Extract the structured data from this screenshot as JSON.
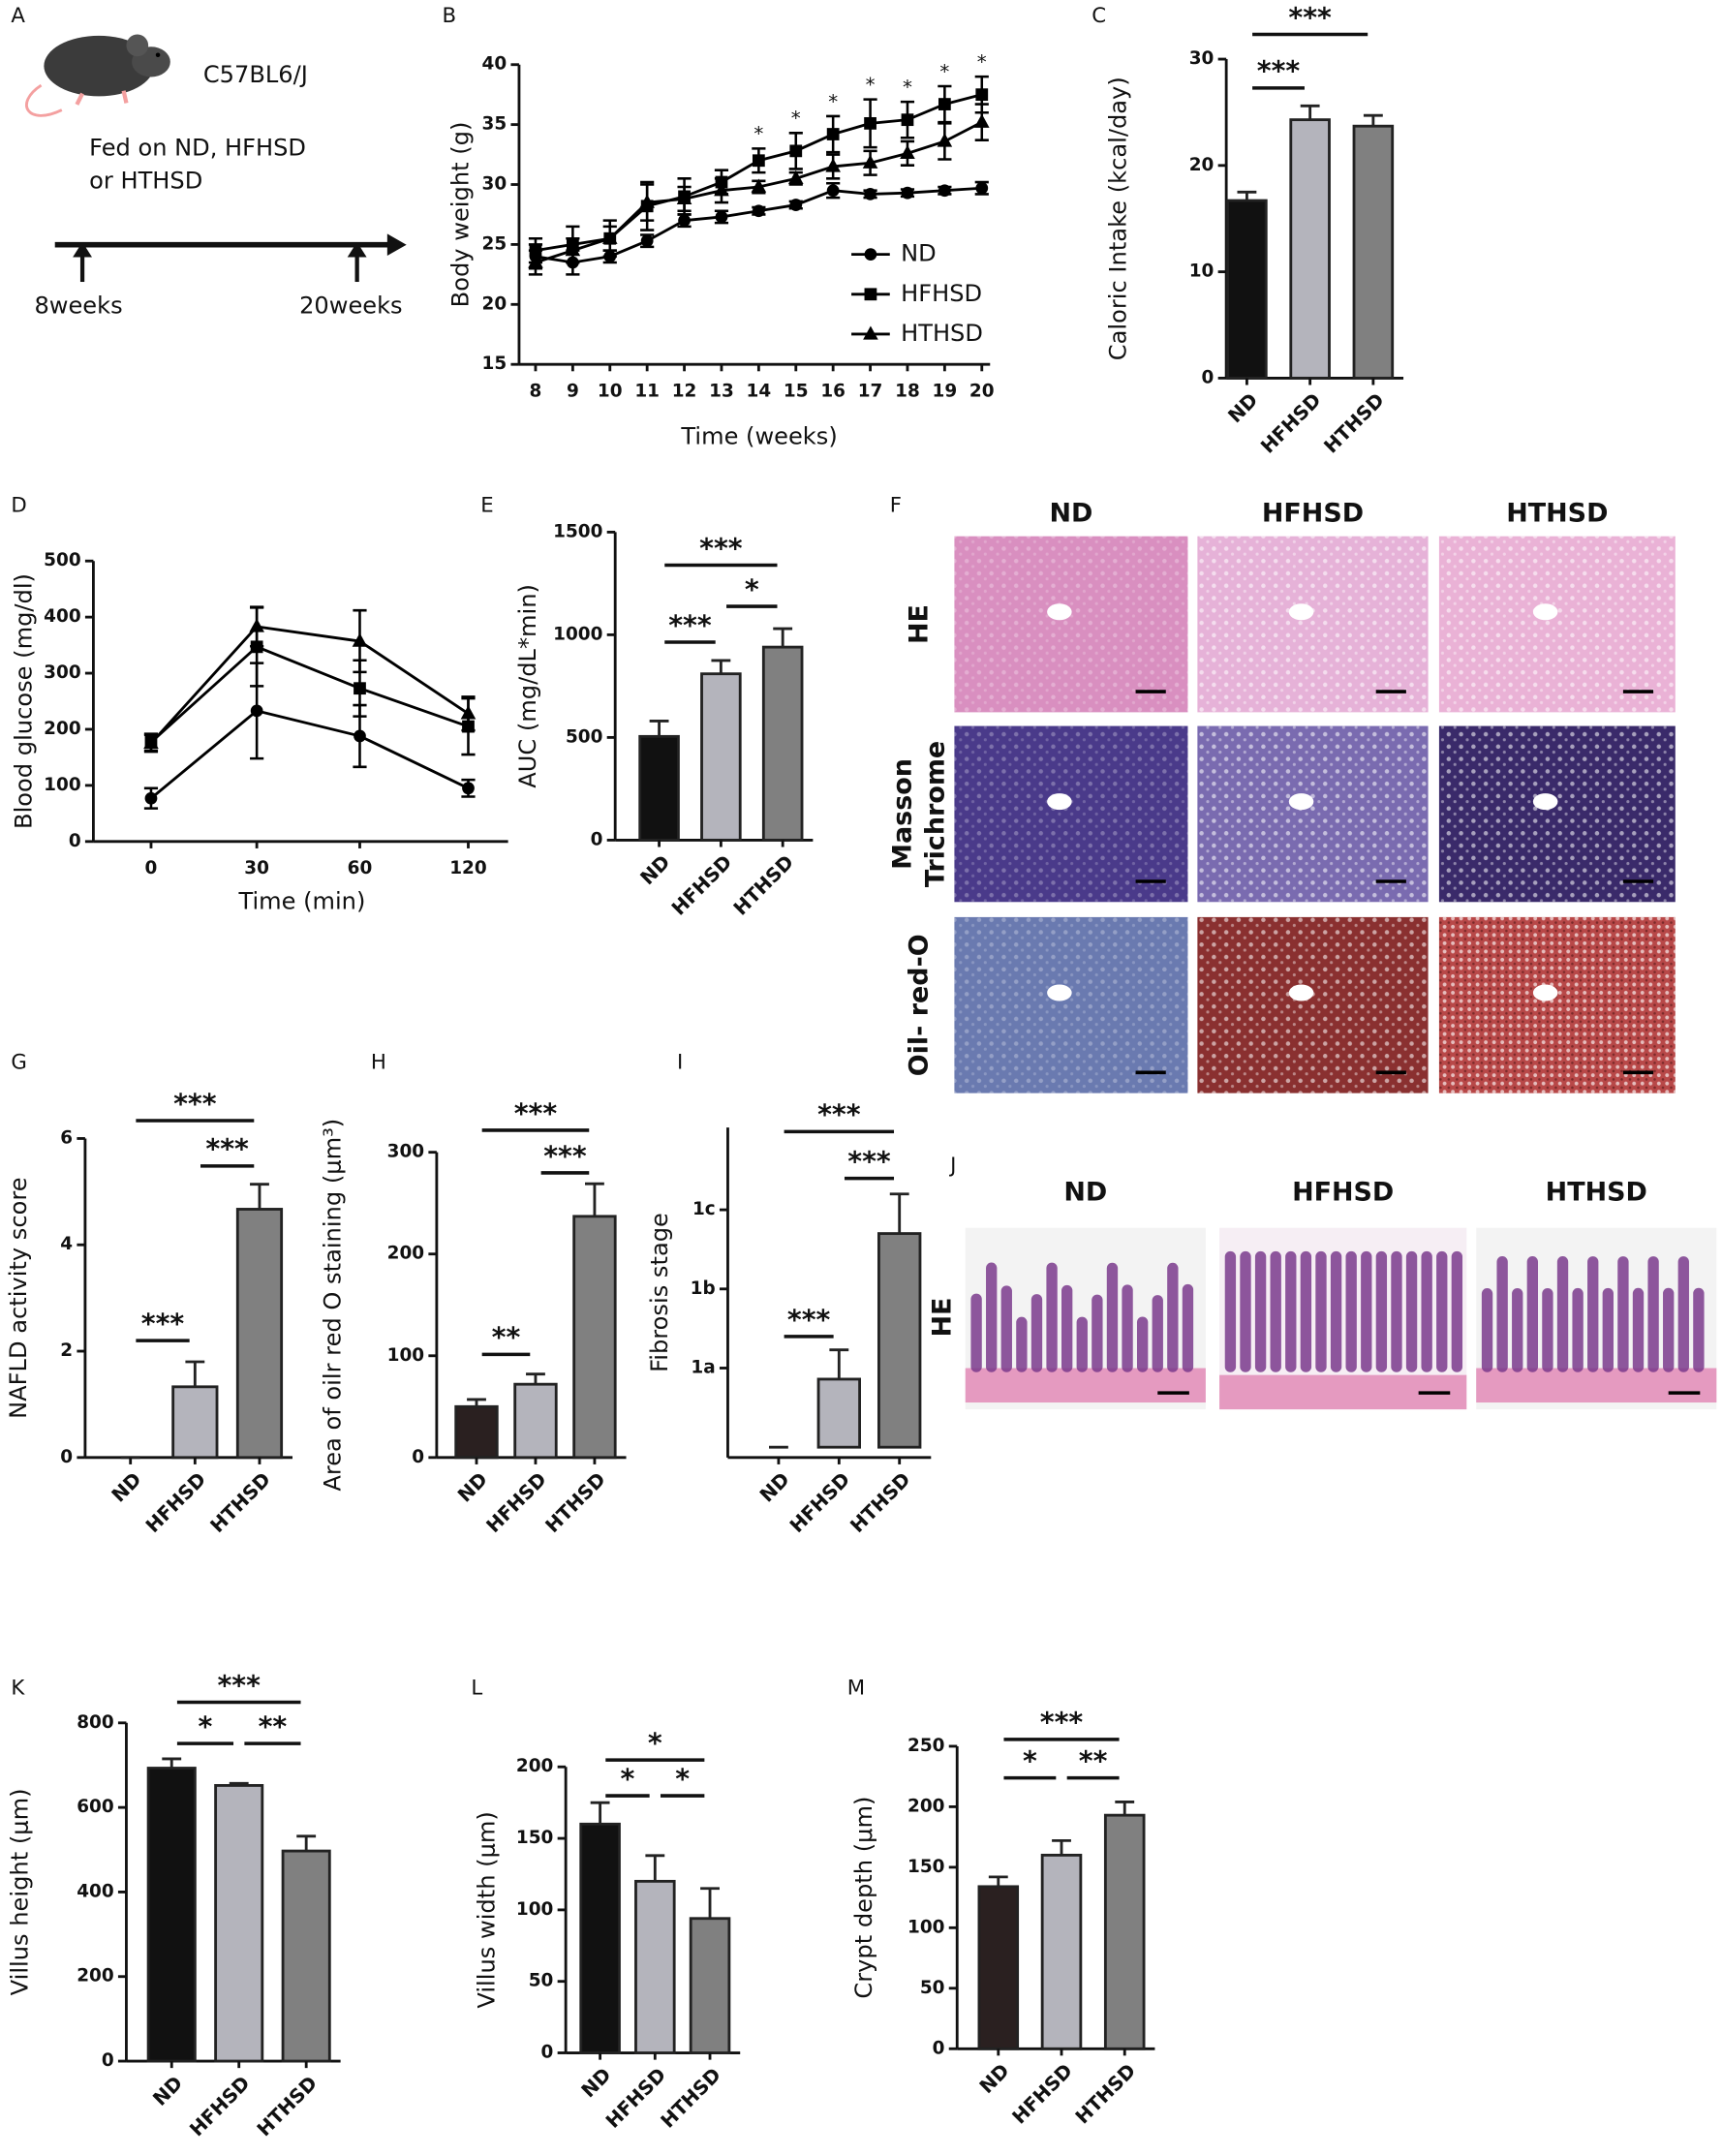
{
  "diagram": {
    "panel": "A",
    "strain": "C57BL6/J",
    "diet_line1": "Fed on ND, HFHSD",
    "diet_line2": "or HTHSD",
    "start": "8weeks",
    "end": "20weeks"
  },
  "chart_data": [
    {
      "type": "line",
      "panel": "B",
      "xlabel": "Time (weeks)",
      "ylabel": "Body weight (g)",
      "x": [
        8,
        9,
        10,
        11,
        12,
        13,
        14,
        15,
        16,
        17,
        18,
        19,
        20
      ],
      "xlim": [
        8,
        20
      ],
      "xticks": [
        8,
        9,
        10,
        11,
        12,
        13,
        14,
        15,
        16,
        17,
        18,
        19,
        20
      ],
      "ylim": [
        15,
        40
      ],
      "yticks": [
        15,
        20,
        25,
        30,
        35,
        40
      ],
      "legend": "right",
      "series": [
        {
          "name": "ND",
          "color": "#000000",
          "marker": "circle",
          "values": [
            24,
            23.5,
            24,
            25.3,
            27,
            27.3,
            27.8,
            28.3,
            29.5,
            29.2,
            29.3,
            29.5,
            29.7
          ],
          "errors": [
            1,
            1,
            0.5,
            0.5,
            0.5,
            0.5,
            0.3,
            0.3,
            0.6,
            0.3,
            0.3,
            0.3,
            0.5
          ]
        },
        {
          "name": "HFHSD",
          "color": "#000000",
          "marker": "square",
          "values": [
            24.5,
            25,
            25.5,
            28.2,
            29,
            30.2,
            32,
            32.8,
            34.2,
            35.1,
            35.4,
            36.7,
            37.5
          ],
          "errors": [
            1,
            1.5,
            1.5,
            2,
            1.5,
            1,
            1,
            1.5,
            1.5,
            2,
            1.5,
            1.5,
            1.5
          ]
        },
        {
          "name": "HTHSD",
          "color": "#000000",
          "marker": "triangle",
          "values": [
            23.5,
            24.5,
            25.5,
            28.5,
            28.8,
            29.5,
            29.8,
            30.5,
            31.5,
            31.8,
            32.6,
            33.6,
            35.2
          ],
          "errors": [
            1,
            1,
            1,
            1.5,
            1,
            1,
            0.5,
            0.5,
            1,
            1,
            1,
            1.5,
            1.5
          ]
        }
      ],
      "annotations": [
        "*",
        "*",
        "*",
        "*",
        "*",
        "*",
        "*"
      ]
    },
    {
      "type": "bar",
      "panel": "C",
      "ylabel": "Caloric Intake (kcal/day)",
      "categories": [
        "ND",
        "HFHSD",
        "HTHSD"
      ],
      "values": [
        16.7,
        24.3,
        23.7
      ],
      "errors": [
        0.8,
        1.3,
        1.0
      ],
      "colors": [
        "#111111",
        "#b4b4bc",
        "#808080"
      ],
      "ylim": [
        0,
        30
      ],
      "yticks": [
        0,
        10,
        20,
        30
      ],
      "annotations": [
        "***",
        "***"
      ]
    },
    {
      "type": "line",
      "panel": "D",
      "xlabel": "Time (min)",
      "ylabel": "Blood glucose (mg/dl)",
      "categories": [
        "0",
        "30",
        "60",
        "120"
      ],
      "ylim": [
        0,
        500
      ],
      "yticks": [
        0,
        100,
        200,
        300,
        400,
        500
      ],
      "series": [
        {
          "color": "#000000",
          "marker": "circle",
          "values": [
            77,
            233,
            188,
            95
          ],
          "errors": [
            18,
            85,
            55,
            15
          ]
        },
        {
          "color": "#000000",
          "marker": "square",
          "values": [
            177,
            347,
            273,
            205
          ],
          "errors": [
            15,
            70,
            50,
            50
          ]
        },
        {
          "color": "#000000",
          "marker": "triangle",
          "values": [
            175,
            383,
            357,
            228
          ],
          "errors": [
            15,
            35,
            55,
            30
          ]
        }
      ]
    },
    {
      "type": "bar",
      "panel": "E",
      "ylabel": "AUC (mg/dL*min)",
      "categories": [
        "ND",
        "HFHSD",
        "HTHSD"
      ],
      "values": [
        505,
        810,
        940
      ],
      "errors": [
        75,
        65,
        90
      ],
      "colors": [
        "#111111",
        "#b4b4bc",
        "#808080"
      ],
      "ylim": [
        0,
        1500
      ],
      "yticks": [
        0,
        500,
        1000,
        1500
      ],
      "annotations": [
        "***",
        "*",
        "***"
      ]
    },
    {
      "type": "bar",
      "panel": "G",
      "ylabel": "NAFLD activity score",
      "categories": [
        "ND",
        "HFHSD",
        "HTHSD"
      ],
      "values": [
        0,
        1.33,
        4.67
      ],
      "errors": [
        0,
        0.47,
        0.47
      ],
      "colors": [
        "#111111",
        "#b4b4bc",
        "#808080"
      ],
      "ylim": [
        0,
        6
      ],
      "yticks": [
        0,
        2,
        4,
        6
      ],
      "annotations": [
        "***",
        "***",
        "***"
      ]
    },
    {
      "type": "bar",
      "panel": "H",
      "ylabel": "Area of oilr red O staining (μm³)",
      "categories": [
        "ND",
        "HFHSD",
        "HTHSD"
      ],
      "values": [
        50,
        72,
        237
      ],
      "errors": [
        7,
        10,
        32
      ],
      "colors": [
        "#2a2020",
        "#b4b4bc",
        "#808080"
      ],
      "ylim": [
        0,
        300
      ],
      "yticks": [
        0,
        100,
        200,
        300
      ],
      "annotations": [
        "**",
        "***",
        "***"
      ]
    },
    {
      "type": "bar",
      "panel": "I",
      "ylabel": "Fibrosis stage",
      "categories": [
        "ND",
        "HFHSD",
        "HTHSD"
      ],
      "values": [
        0,
        0.86,
        2.7
      ],
      "errors": [
        0,
        0.37,
        0.5
      ],
      "colors": [
        "#111111",
        "#b4b4bc",
        "#808080"
      ],
      "ylim": [
        -0.13,
        4.04
      ],
      "yticks": [
        {
          "value": 1,
          "label": "1a"
        },
        {
          "value": 2,
          "label": "1b"
        },
        {
          "value": 3,
          "label": "1c"
        }
      ],
      "annotations": [
        "***",
        "***",
        "***"
      ]
    },
    {
      "type": "bar",
      "panel": "K",
      "ylabel": "Villus height (μm)",
      "categories": [
        "ND",
        "HFHSD",
        "HTHSD"
      ],
      "values": [
        693,
        652,
        497
      ],
      "errors": [
        22,
        5,
        35
      ],
      "colors": [
        "#111111",
        "#b4b4bc",
        "#808080"
      ],
      "ylim": [
        0,
        800
      ],
      "yticks": [
        0,
        200,
        400,
        600,
        800
      ],
      "annotations": [
        "***",
        "*",
        "**"
      ]
    },
    {
      "type": "bar",
      "panel": "L",
      "ylabel": "Villus width (μm)",
      "categories": [
        "ND",
        "HFHSD",
        "HTHSD"
      ],
      "values": [
        160,
        120,
        94
      ],
      "errors": [
        15,
        18,
        21
      ],
      "colors": [
        "#111111",
        "#b4b4bc",
        "#808080"
      ],
      "ylim": [
        0,
        200
      ],
      "yticks": [
        0,
        50,
        100,
        150,
        200
      ],
      "annotations": [
        "*",
        "*",
        "*"
      ]
    },
    {
      "type": "bar",
      "panel": "M",
      "ylabel": "Crypt depth (μm)",
      "categories": [
        "ND",
        "HFHSD",
        "HTHSD"
      ],
      "values": [
        134,
        160,
        193
      ],
      "errors": [
        8,
        12,
        11
      ],
      "colors": [
        "#2a2020",
        "#b4b4bc",
        "#808080"
      ],
      "ylim": [
        0,
        250
      ],
      "yticks": [
        0,
        50,
        100,
        150,
        200,
        250
      ],
      "annotations": [
        "***",
        "*",
        "**"
      ]
    }
  ],
  "histology_liver": {
    "panel": "F",
    "columns": [
      "ND",
      "HFHSD",
      "HTHSD"
    ],
    "rows": [
      [
        "HE"
      ],
      [
        "Masson",
        "Trichrome"
      ],
      [
        "Oil- red-O"
      ]
    ]
  },
  "histology_intestine": {
    "panel": "J",
    "columns": [
      "ND",
      "HFHSD",
      "HTHSD"
    ],
    "rows": [
      [
        "HE"
      ]
    ]
  }
}
